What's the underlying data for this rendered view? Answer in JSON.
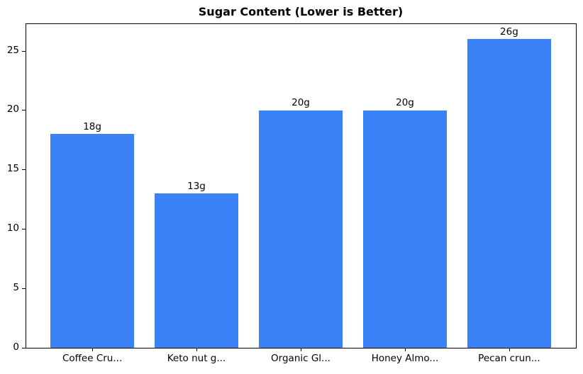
{
  "chart_data": {
    "type": "bar",
    "title": "Sugar Content (Lower is Better)",
    "categories": [
      "Coffee Cru...",
      "Keto nut g...",
      "Organic Gl...",
      "Honey Almo...",
      "Pecan crun..."
    ],
    "values": [
      18,
      13,
      20,
      20,
      26
    ],
    "bar_labels": [
      "18g",
      "13g",
      "20g",
      "20g",
      "26g"
    ],
    "xlabel": "",
    "ylabel": "",
    "yticks": [
      0,
      5,
      10,
      15,
      20,
      25
    ],
    "ylim": [
      0,
      27.3
    ],
    "grid": false,
    "legend": null,
    "bar_color": "#3b82f6",
    "axis_color": "#000000",
    "background_color": "#ffffff"
  }
}
